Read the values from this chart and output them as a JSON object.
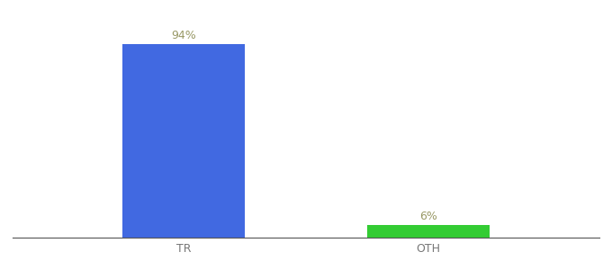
{
  "categories": [
    "TR",
    "OTH"
  ],
  "values": [
    94,
    6
  ],
  "bar_colors": [
    "#4169e1",
    "#33cc33"
  ],
  "value_labels": [
    "94%",
    "6%"
  ],
  "background_color": "#ffffff",
  "ylim": [
    0,
    105
  ],
  "label_fontsize": 9,
  "tick_fontsize": 9,
  "label_color": "#999966",
  "bar_width": 0.5,
  "x_positions": [
    1,
    2
  ],
  "xlim": [
    0.3,
    2.7
  ]
}
